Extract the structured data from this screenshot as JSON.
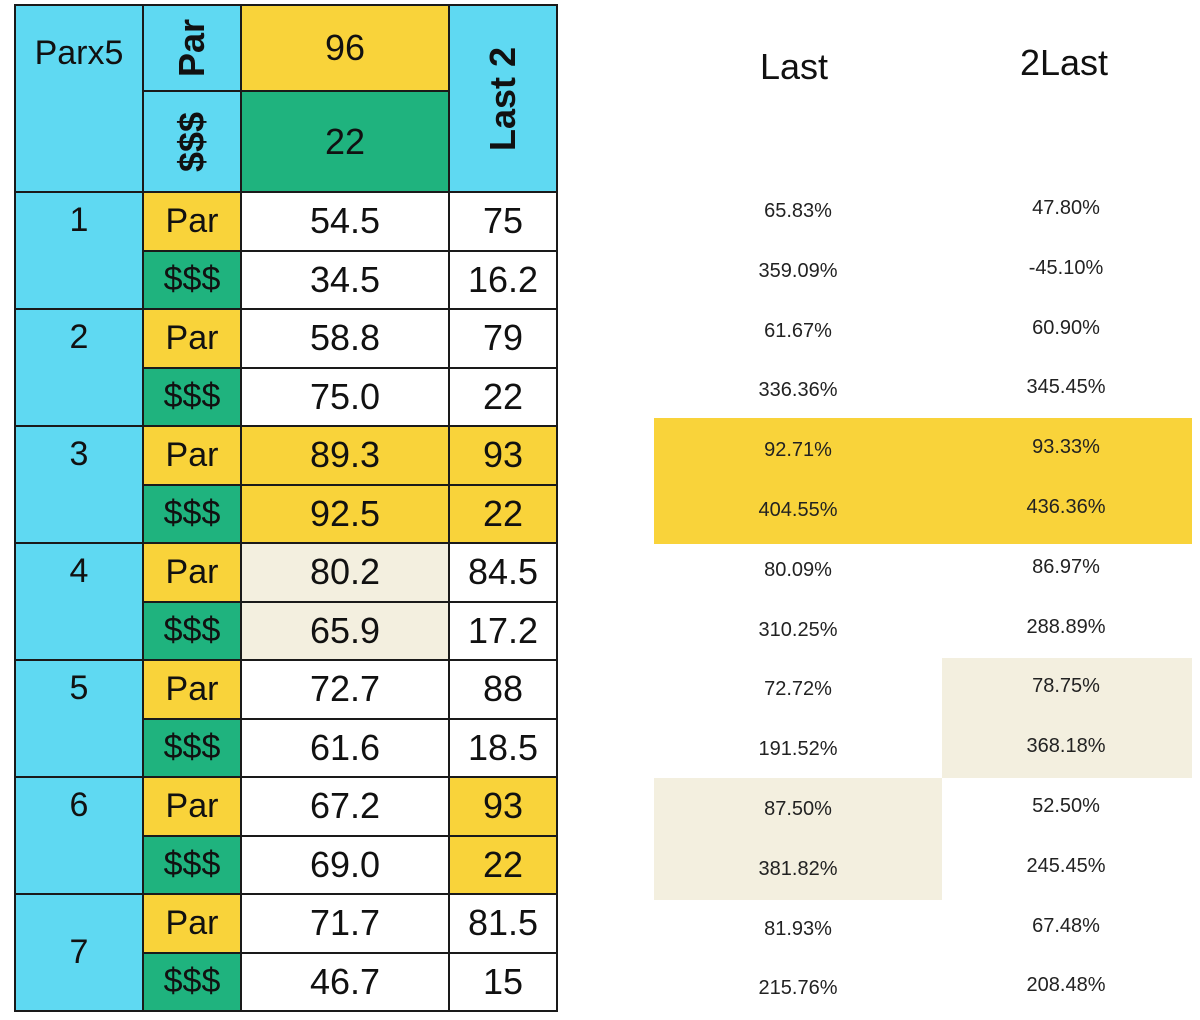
{
  "table": {
    "title": "Parx5",
    "par_label": "Par",
    "money_label": "$$$",
    "par_value": "96",
    "money_value": "22",
    "last2_label": "Last 2",
    "races": [
      {
        "num": "1",
        "par": {
          "label": "Par",
          "value": "54.5",
          "last2": "75"
        },
        "money": {
          "label": "$$$",
          "value": "34.5",
          "last2": "16.2"
        }
      },
      {
        "num": "2",
        "par": {
          "label": "Par",
          "value": "58.8",
          "last2": "79"
        },
        "money": {
          "label": "$$$",
          "value": "75.0",
          "last2": "22"
        }
      },
      {
        "num": "3",
        "par": {
          "label": "Par",
          "value": "89.3",
          "last2": "93"
        },
        "money": {
          "label": "$$$",
          "value": "92.5",
          "last2": "22"
        }
      },
      {
        "num": "4",
        "par": {
          "label": "Par",
          "value": "80.2",
          "last2": "84.5"
        },
        "money": {
          "label": "$$$",
          "value": "65.9",
          "last2": "17.2"
        }
      },
      {
        "num": "5",
        "par": {
          "label": "Par",
          "value": "72.7",
          "last2": "88"
        },
        "money": {
          "label": "$$$",
          "value": "61.6",
          "last2": "18.5"
        }
      },
      {
        "num": "6",
        "par": {
          "label": "Par",
          "value": "67.2",
          "last2": "93"
        },
        "money": {
          "label": "$$$",
          "value": "69.0",
          "last2": "22"
        }
      },
      {
        "num": "7",
        "par": {
          "label": "Par",
          "value": "71.7",
          "last2": "81.5"
        },
        "money": {
          "label": "$$$",
          "value": "46.7",
          "last2": "15"
        }
      }
    ]
  },
  "pct": {
    "headers": {
      "last": "Last",
      "last2": "2Last"
    },
    "rows": [
      {
        "last": "65.83%",
        "last2": "47.80%"
      },
      {
        "last": "359.09%",
        "last2": "-45.10%"
      },
      {
        "last": "61.67%",
        "last2": "60.90%"
      },
      {
        "last": "336.36%",
        "last2": "345.45%"
      },
      {
        "last": "92.71%",
        "last2": "93.33%"
      },
      {
        "last": "404.55%",
        "last2": "436.36%"
      },
      {
        "last": "80.09%",
        "last2": "86.97%"
      },
      {
        "last": "310.25%",
        "last2": "288.89%"
      },
      {
        "last": "72.72%",
        "last2": "78.75%"
      },
      {
        "last": "191.52%",
        "last2": "368.18%"
      },
      {
        "last": "87.50%",
        "last2": "52.50%"
      },
      {
        "last": "381.82%",
        "last2": "245.45%"
      },
      {
        "last": "81.93%",
        "last2": "67.48%"
      },
      {
        "last": "215.76%",
        "last2": "208.48%"
      }
    ]
  },
  "colors": {
    "cyan": "#5fd9f2",
    "yellow": "#f9d33a",
    "green": "#1fb37e",
    "cream": "#f3efdf"
  }
}
